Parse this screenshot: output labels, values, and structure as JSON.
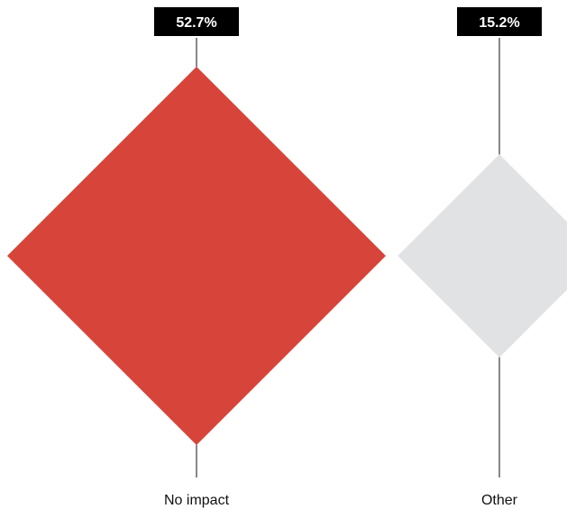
{
  "chart_data": {
    "type": "diamond",
    "categories": [
      "No impact",
      "Other"
    ],
    "values": [
      52.7,
      15.2
    ],
    "value_labels": [
      "52.7%",
      "15.2%"
    ],
    "colors": [
      "#d6443a",
      "#e1e2e4"
    ],
    "unit": "%"
  }
}
